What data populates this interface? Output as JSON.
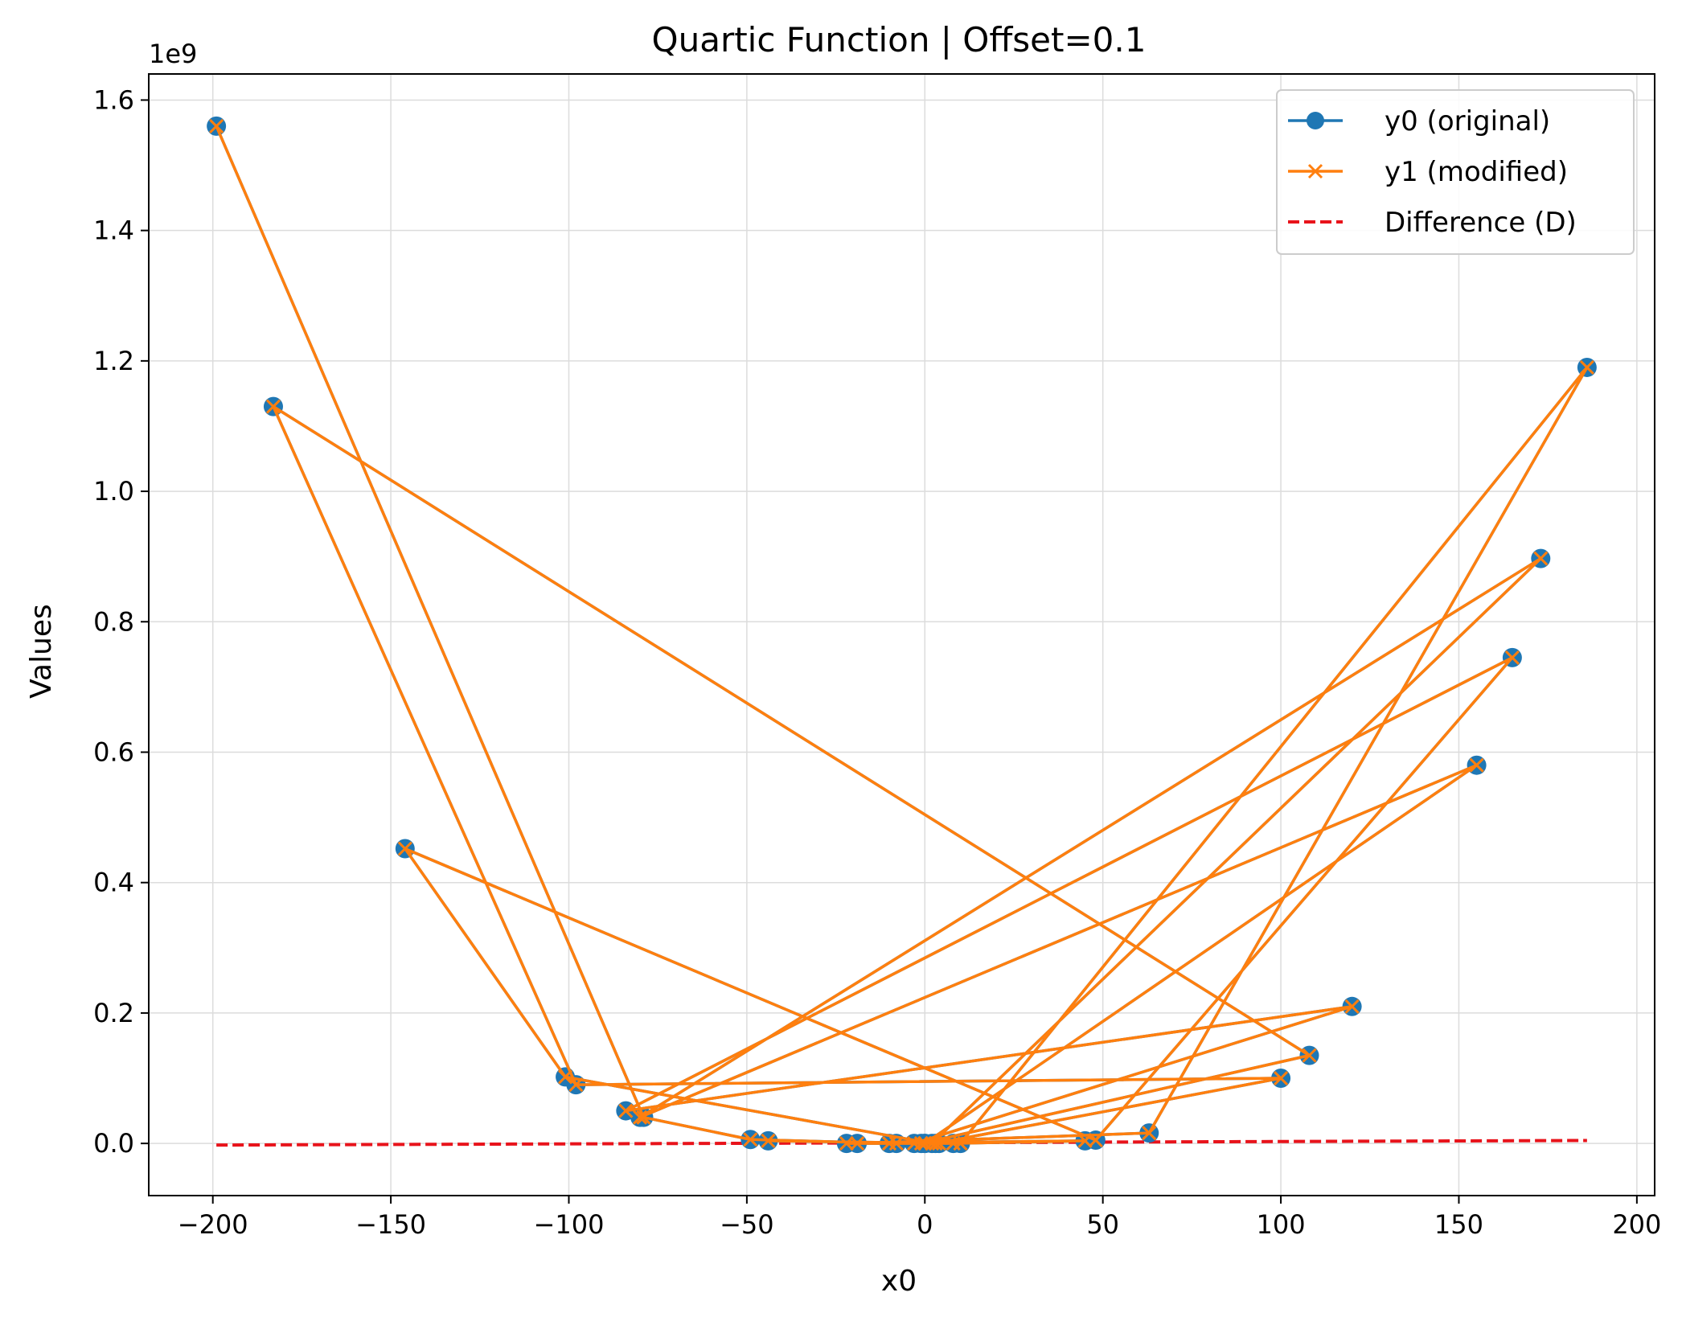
{
  "chart_data": {
    "type": "line",
    "title": "Quartic Function | Offset=0.1",
    "xlabel": "x0",
    "ylabel": "Values",
    "y_multiplier_label": "1e9",
    "xlim": [
      -218,
      205
    ],
    "ylim": [
      -0.08,
      1.64
    ],
    "xticks": [
      -200,
      -150,
      -100,
      -50,
      0,
      50,
      100,
      150,
      200
    ],
    "xtick_labels": [
      "−200",
      "−150",
      "−100",
      "−50",
      "0",
      "50",
      "100",
      "150",
      "200"
    ],
    "yticks": [
      0.0,
      0.2,
      0.4,
      0.6,
      0.8,
      1.0,
      1.2,
      1.4,
      1.6
    ],
    "ytick_labels": [
      "0.0",
      "0.2",
      "0.4",
      "0.6",
      "0.8",
      "1.0",
      "1.2",
      "1.4",
      "1.6"
    ],
    "grid": true,
    "legend_position": "top-right",
    "x": [
      -199,
      -79,
      -49,
      -8,
      0,
      3,
      100,
      -98,
      -183,
      108,
      -1,
      -19,
      63,
      186,
      10,
      -3,
      120,
      -84,
      165,
      48,
      -146,
      -101,
      2,
      173,
      -80,
      155,
      0,
      -22,
      45,
      8,
      -44,
      4,
      -10
    ],
    "series": [
      {
        "name": "y0 (original)",
        "color": "#1f77b4",
        "marker": "circle",
        "values": [
          1.56,
          0.04,
          0.006,
          0.0,
          0.0,
          0.0,
          0.1,
          0.09,
          1.13,
          0.135,
          0.0,
          0.0,
          0.016,
          1.19,
          0.0,
          0.0,
          0.21,
          0.05,
          0.745,
          0.005,
          0.452,
          0.102,
          0.0,
          0.897,
          0.04,
          0.58,
          0.0,
          0.0,
          0.004,
          0.0,
          0.004,
          0.0,
          0.0
        ]
      },
      {
        "name": "y1 (modified)",
        "color": "#ff7f0e",
        "marker": "x",
        "values": [
          1.56,
          0.04,
          0.006,
          0.0,
          0.0,
          0.0,
          0.1,
          0.09,
          1.13,
          0.135,
          0.0,
          0.0,
          0.016,
          1.19,
          0.0,
          0.0,
          0.21,
          0.05,
          0.745,
          0.005,
          0.452,
          0.102,
          0.0,
          0.897,
          0.04,
          0.58,
          0.0,
          0.0,
          0.004,
          0.0,
          0.004,
          0.0,
          0.0
        ]
      },
      {
        "name": "Difference (D)",
        "color": "#e8131b",
        "line_style": "dashed",
        "x_range": [
          -199,
          186
        ],
        "values_range": [
          -0.0025,
          0.0045
        ]
      }
    ]
  }
}
